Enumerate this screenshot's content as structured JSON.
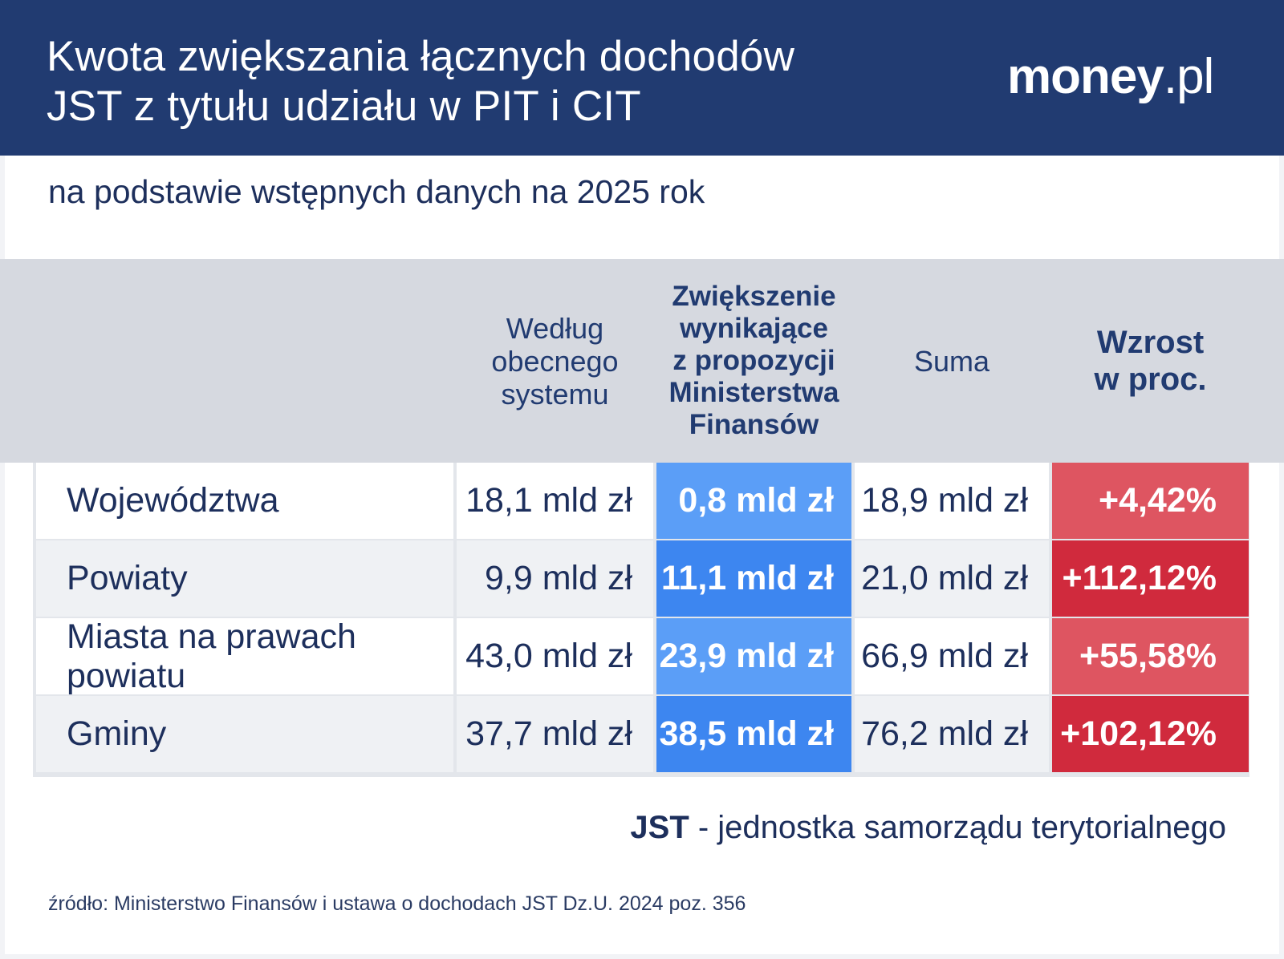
{
  "header": {
    "title_line1": "Kwota zwiększania łącznych dochodów",
    "title_line2": "JST z tytułu udziału w PIT i CIT",
    "logo_main": "money",
    "logo_suffix": ".pl"
  },
  "subtitle": "na podstawie wstępnych danych na 2025 rok",
  "chart_data": {
    "type": "table",
    "unit": "mld zł",
    "columns": [
      {
        "key": "label",
        "lines": []
      },
      {
        "key": "current",
        "lines": [
          "Według",
          "obecnego",
          "systemu"
        ]
      },
      {
        "key": "increase",
        "lines": [
          "Zwiększenie",
          "wynikające",
          "z propozycji",
          "Ministerstwa",
          "Finansów"
        ]
      },
      {
        "key": "sum",
        "lines": [
          "Suma"
        ]
      },
      {
        "key": "growth",
        "lines": [
          "Wzrost",
          "w proc."
        ]
      }
    ],
    "rows": [
      {
        "label": "Województwa",
        "current": "18,1 mld zł",
        "increase": "0,8 mld zł",
        "sum": "18,9 mld zł",
        "growth": "+4,42%",
        "current_value": 18.1,
        "increase_value": 0.8,
        "sum_value": 18.9,
        "growth_value": 4.42
      },
      {
        "label": "Powiaty",
        "current": "9,9 mld zł",
        "increase": "11,1 mld zł",
        "sum": "21,0 mld zł",
        "growth": "+112,12%",
        "current_value": 9.9,
        "increase_value": 11.1,
        "sum_value": 21.0,
        "growth_value": 112.12
      },
      {
        "label": "Miasta na prawach powiatu",
        "current": "43,0 mld zł",
        "increase": "23,9 mld zł",
        "sum": "66,9 mld zł",
        "growth": "+55,58%",
        "current_value": 43.0,
        "increase_value": 23.9,
        "sum_value": 66.9,
        "growth_value": 55.58
      },
      {
        "label": "Gminy",
        "current": "37,7 mld zł",
        "increase": "38,5 mld zł",
        "sum": "76,2 mld zł",
        "growth": "+102,12%",
        "current_value": 37.7,
        "increase_value": 38.5,
        "sum_value": 76.2,
        "growth_value": 102.12
      }
    ],
    "colors": {
      "increase": [
        "#5b9ef7",
        "#3d86f0",
        "#5b9ef7",
        "#3d86f0"
      ],
      "growth": [
        "#de5561",
        "#d02a3d",
        "#de5561",
        "#d02a3d"
      ],
      "row_bg": [
        "#ffffff",
        "#eff1f4",
        "#ffffff",
        "#eff1f4"
      ]
    }
  },
  "note": {
    "bold": "JST",
    "text": " - jednostka samorządu terytorialnego"
  },
  "source": "źródło: Ministerstwo Finansów i ustawa o dochodach JST Dz.U. 2024 poz. 356"
}
